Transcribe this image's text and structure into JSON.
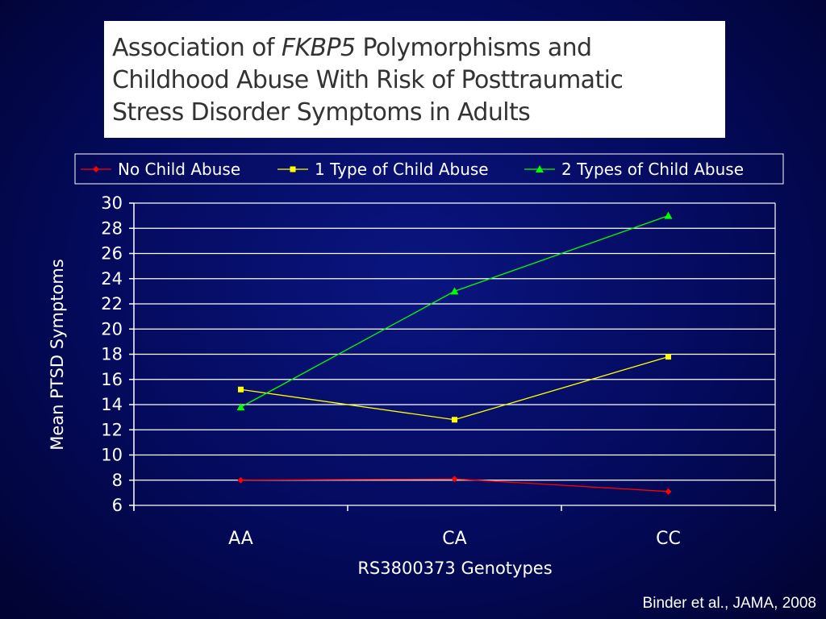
{
  "title": {
    "line1_pre": "Association of ",
    "line1_gene": "FKBP5",
    "line1_post": " Polymorphisms and",
    "line2": "Childhood Abuse With Risk of Posttraumatic",
    "line3": "Stress Disorder Symptoms in Adults"
  },
  "citation": "Binder et al., JAMA, 2008",
  "chart_data": {
    "type": "line",
    "categories": [
      "AA",
      "CA",
      "CC"
    ],
    "xlabel": "RS3800373 Genotypes",
    "ylabel": "Mean PTSD Symptoms",
    "ylim": [
      6,
      30
    ],
    "yticks": [
      6,
      8,
      10,
      12,
      14,
      16,
      18,
      20,
      22,
      24,
      26,
      28,
      30
    ],
    "grid": true,
    "legend_position": "top",
    "series": [
      {
        "name": "No Child Abuse",
        "values": [
          8.0,
          8.1,
          7.1
        ],
        "color": "#ff0000",
        "marker": "diamond"
      },
      {
        "name": "1 Type of Child Abuse",
        "values": [
          15.2,
          12.8,
          17.8
        ],
        "color": "#ffff00",
        "marker": "square"
      },
      {
        "name": "2 Types of Child Abuse",
        "values": [
          13.8,
          23.0,
          29.0
        ],
        "color": "#00ff00",
        "marker": "triangle"
      }
    ]
  }
}
